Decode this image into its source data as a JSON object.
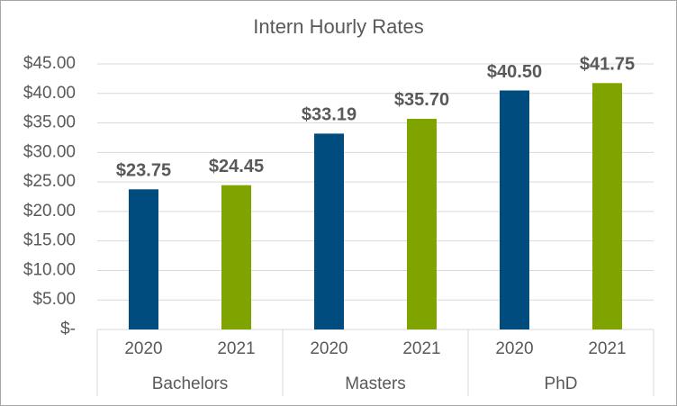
{
  "chart_data": {
    "type": "bar",
    "title": "Intern Hourly Rates",
    "categories": [
      "Bachelors",
      "Masters",
      "PhD"
    ],
    "series": [
      {
        "name": "2020",
        "color": "#004c7e",
        "values": [
          23.75,
          33.19,
          40.5
        ],
        "value_labels": [
          "$23.75",
          "$33.19",
          "$40.50"
        ]
      },
      {
        "name": "2021",
        "color": "#7fa400",
        "values": [
          24.45,
          35.7,
          41.75
        ],
        "value_labels": [
          "$24.45",
          "$35.70",
          "$41.75"
        ]
      }
    ],
    "ylim": [
      0,
      45
    ],
    "yticks": [
      {
        "value": 0,
        "label": "$-"
      },
      {
        "value": 5,
        "label": "$5.00"
      },
      {
        "value": 10,
        "label": "$10.00"
      },
      {
        "value": 15,
        "label": "$15.00"
      },
      {
        "value": 20,
        "label": "$20.00"
      },
      {
        "value": 25,
        "label": "$25.00"
      },
      {
        "value": 30,
        "label": "$30.00"
      },
      {
        "value": 35,
        "label": "$35.00"
      },
      {
        "value": 40,
        "label": "$40.00"
      },
      {
        "value": 45,
        "label": "$45.00"
      }
    ],
    "grid": true
  }
}
